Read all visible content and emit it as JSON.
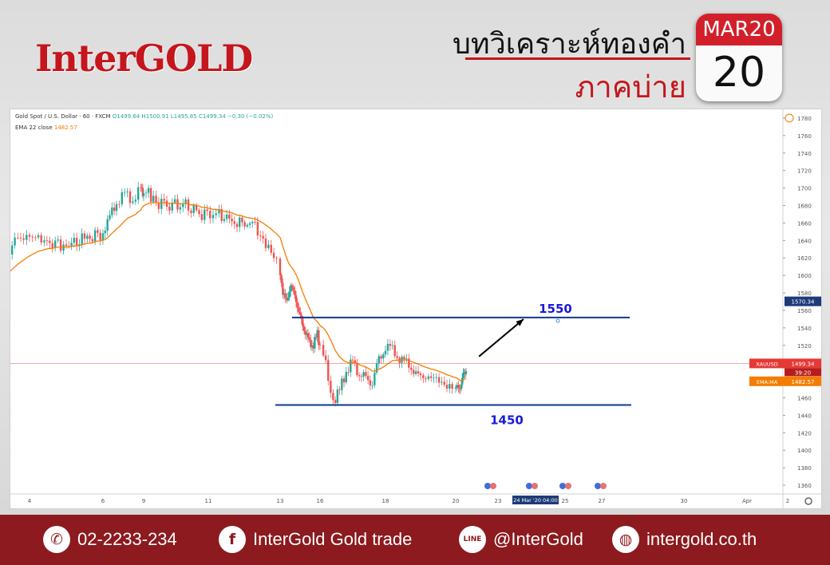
{
  "header": {
    "logo": "InterGOLD",
    "title": "บทวิเคราะห์ทองคำ",
    "subtitle": "ภาคบ่าย",
    "calendar_month": "MAR20",
    "calendar_day": "20"
  },
  "chart_info": {
    "legend_main": "Gold Spot / U.S. Dollar · 60 · FXCM",
    "ohlc": "O1499.64 H1500.91 L1495.85 C1499.34 −0.30 (−0.02%)",
    "indicator": "EMA 22 close",
    "indicator_value": "1482.57",
    "price_tag_symbol": "XAUUSD",
    "price_tag_value": "1499.34",
    "timer_tag": "39:20",
    "ema_tag_label": "EMA:MA",
    "ema_tag_value": "1482.57",
    "level_tag": "1570.34",
    "crosshair_date": "24 Mar '20",
    "crosshair_time": "04:00",
    "colors": {
      "up": "#26a69a",
      "down": "#ef5350",
      "ema": "#f57c00",
      "level": "#0d3a8e",
      "label": "#1a1adb",
      "price": "#e53935"
    }
  },
  "chart_data": {
    "type": "candlestick",
    "title": "",
    "symbol": "Gold Spot / U.S. Dollar",
    "interval": "60",
    "ylim": [
      1350,
      1790
    ],
    "y_ticks": [
      1360,
      1380,
      1400,
      1420,
      1440,
      1460,
      1480,
      1500,
      1520,
      1540,
      1560,
      1580,
      1600,
      1620,
      1640,
      1660,
      1680,
      1700,
      1720,
      1740,
      1760,
      1780
    ],
    "x_ticks": [
      "4",
      "6",
      "9",
      "11",
      "13",
      "16",
      "18",
      "20",
      "23",
      "25",
      "27",
      "30",
      "Apr",
      "2"
    ],
    "price_path": {
      "x_day": [
        3.0,
        3.3,
        3.6,
        4.0,
        4.4,
        5.0,
        5.5,
        6.0,
        6.5,
        7.0,
        7.6,
        8.2,
        8.8,
        9.0,
        9.3,
        9.8,
        10.3,
        10.8,
        11.3,
        11.8,
        12.3,
        12.6,
        12.9,
        13.2,
        13.5,
        13.8,
        14.1,
        14.4,
        14.6,
        14.9,
        15.2,
        15.5,
        15.8,
        16.1,
        16.4,
        16.6,
        16.8,
        17.0,
        17.2,
        17.4,
        17.6,
        17.8,
        18.0,
        18.2,
        18.4,
        18.6,
        18.8,
        19.0,
        19.3,
        19.6,
        19.9,
        20.2,
        20.4,
        20.6,
        20.8
      ],
      "close": [
        1598,
        1606,
        1640,
        1647,
        1638,
        1635,
        1641,
        1649,
        1668,
        1683,
        1693,
        1688,
        1696,
        1700,
        1684,
        1682,
        1679,
        1671,
        1669,
        1661,
        1657,
        1634,
        1618,
        1578,
        1572,
        1588,
        1578,
        1558,
        1550,
        1533,
        1525,
        1518,
        1536,
        1509,
        1458,
        1467,
        1493,
        1498,
        1491,
        1478,
        1482,
        1500,
        1521,
        1514,
        1505,
        1501,
        1490,
        1484,
        1484,
        1477,
        1472,
        1469,
        1478,
        1486,
        1499
      ]
    },
    "levels": [
      {
        "label": "1550",
        "value": 1550,
        "x_range": [
          "Mar 13",
          "Mar 26"
        ]
      },
      {
        "label": "1450",
        "value": 1450,
        "x_range": [
          "Mar 13",
          "Mar 26"
        ]
      }
    ],
    "projection_arrow": {
      "from": [
        21.2,
        1500
      ],
      "to": [
        22.8,
        1550
      ]
    },
    "last_price": 1499.34,
    "ema22": 1482.57
  },
  "footer": {
    "phone": "02-2233-234",
    "facebook": "InterGold Gold trade",
    "line": "@InterGold",
    "website": "intergold.co.th",
    "icons": [
      "phone-icon",
      "facebook-icon",
      "line-icon",
      "globe-icon"
    ]
  }
}
